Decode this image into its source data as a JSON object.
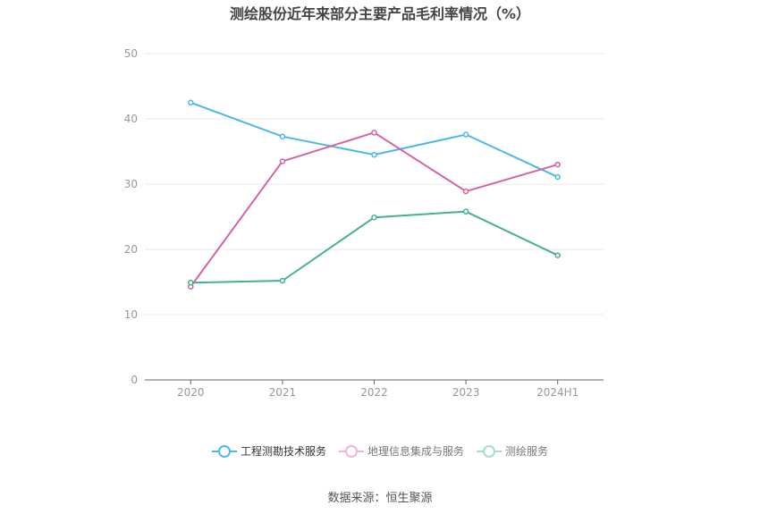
{
  "chart_data": {
    "type": "line",
    "title": "测绘股份近年来部分主要产品毛利率情况（%）",
    "categories": [
      "2020",
      "2021",
      "2022",
      "2023",
      "2024H1"
    ],
    "ylim": [
      0,
      50
    ],
    "yticks": [
      0,
      10,
      20,
      30,
      40,
      50
    ],
    "grid": true,
    "legend_position": "bottom",
    "series": [
      {
        "name": "工程测勘技术服务",
        "color": "#4ab8ea",
        "values": [
          42.5,
          37.3,
          34.5,
          37.6,
          31.1
        ]
      },
      {
        "name": "地理信息集成与服务",
        "color": "#d462a8",
        "values": [
          14.3,
          33.5,
          37.9,
          28.9,
          33.0
        ]
      },
      {
        "name": "测绘服务",
        "color": "#45b097",
        "values": [
          14.9,
          15.2,
          24.9,
          25.8,
          19.1
        ]
      }
    ]
  },
  "source_text": "数据来源：恒生聚源"
}
